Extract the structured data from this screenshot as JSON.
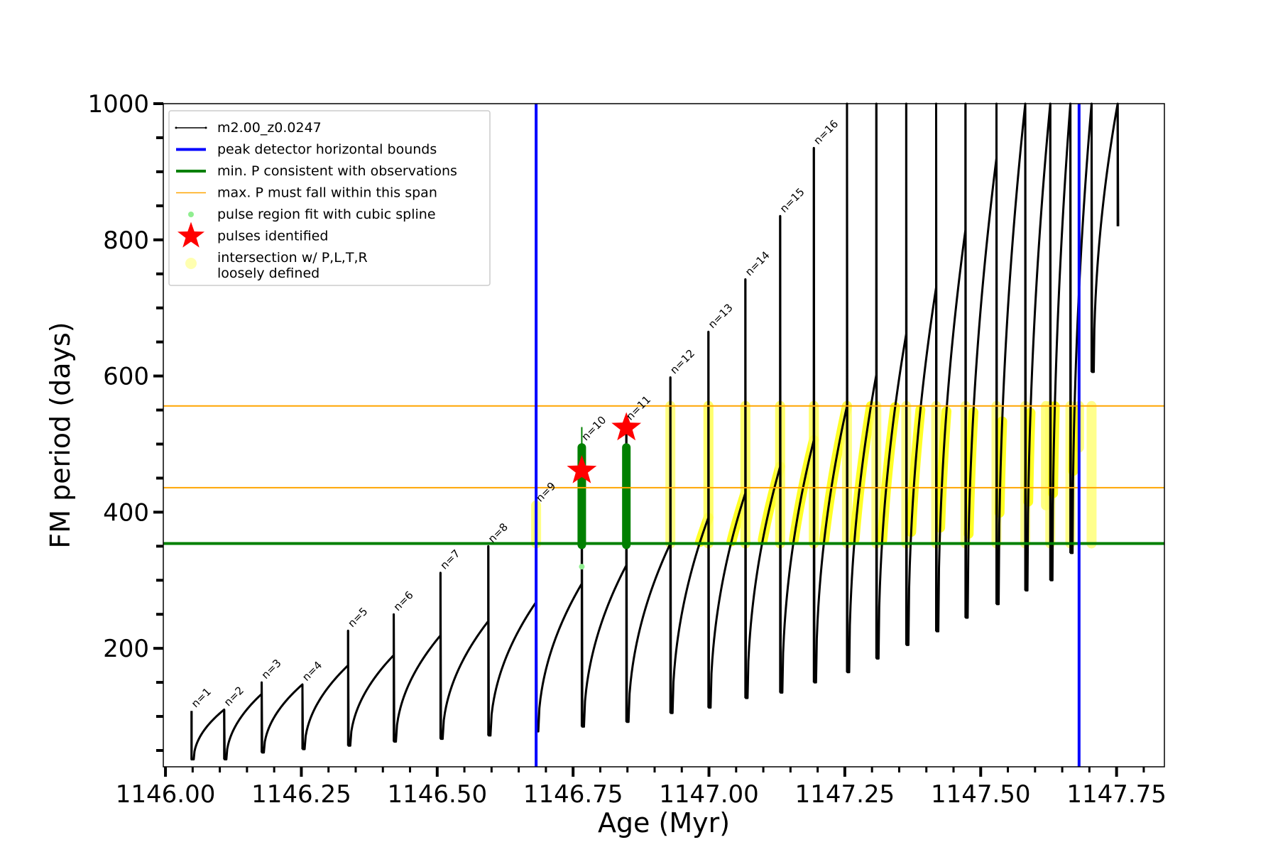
{
  "chart_data": {
    "type": "line",
    "xlabel": "Age (Myr)",
    "ylabel": "FM period (days)",
    "xlim": [
      1145.996,
      1147.838
    ],
    "ylim": [
      26,
      1000
    ],
    "xticks": [
      "1146.00",
      "1146.25",
      "1146.50",
      "1146.75",
      "1147.00",
      "1147.25",
      "1147.50",
      "1147.75"
    ],
    "xtick_values": [
      1146.0,
      1146.25,
      1146.5,
      1146.75,
      1147.0,
      1147.25,
      1147.5,
      1147.75
    ],
    "yticks": [
      "200",
      "400",
      "600",
      "800",
      "1000"
    ],
    "ytick_values": [
      200,
      400,
      600,
      800,
      1000
    ],
    "legend_position": "top-left",
    "legend": [
      {
        "label": "m2.00_z0.0247",
        "kind": "line-dot",
        "color": "#000000"
      },
      {
        "label": "peak detector horizontal bounds",
        "kind": "line",
        "color": "#0000ff"
      },
      {
        "label": "min. P consistent with observations",
        "kind": "line",
        "color": "#008000"
      },
      {
        "label": "max. P must fall within this span",
        "kind": "thin-line",
        "color": "#ffa500"
      },
      {
        "label": "pulse region fit with cubic spline",
        "kind": "dot",
        "color": "#90ee90"
      },
      {
        "label": "pulses identified",
        "kind": "star",
        "color": "#ff0000"
      },
      {
        "label": "intersection w/ P,L,T,R\nloosely defined",
        "kind": "circle",
        "color": "#ffffb0"
      }
    ],
    "vertical_lines": [
      {
        "x": 1146.682,
        "color": "#0000ff"
      },
      {
        "x": 1147.681,
        "color": "#0000ff"
      }
    ],
    "horizontal_lines": [
      {
        "y": 354,
        "color": "#008000"
      },
      {
        "y": 436,
        "color": "#ffa500"
      },
      {
        "y": 556,
        "color": "#ffa500"
      }
    ],
    "pulses": [
      {
        "label": "n=1",
        "x": 1146.048,
        "peak": 108,
        "low": 37,
        "prev_end": 37
      },
      {
        "label": "n=2",
        "x": 1146.108,
        "peak": 110,
        "low": 37,
        "prev_end": 110
      },
      {
        "label": "n=3",
        "x": 1146.177,
        "peak": 150,
        "low": 47,
        "prev_end": 133
      },
      {
        "label": "n=4",
        "x": 1146.252,
        "peak": 147,
        "low": 52,
        "prev_end": 147
      },
      {
        "label": "n=5",
        "x": 1146.336,
        "peak": 226,
        "low": 57,
        "prev_end": 175
      },
      {
        "label": "n=6",
        "x": 1146.42,
        "peak": 250,
        "low": 63,
        "prev_end": 190
      },
      {
        "label": "n=7",
        "x": 1146.506,
        "peak": 311,
        "low": 67,
        "prev_end": 219
      },
      {
        "label": "n=8",
        "x": 1146.594,
        "peak": 350,
        "low": 72,
        "prev_end": 240
      },
      {
        "label": "n=9",
        "x": 1146.682,
        "peak": 410,
        "low": 78,
        "prev_end": 268
      },
      {
        "label": "n=10",
        "x": 1146.766,
        "peak": 500,
        "low": 85,
        "prev_end": 295
      },
      {
        "label": "n=11",
        "x": 1146.848,
        "peak": 530,
        "low": 92,
        "prev_end": 322
      },
      {
        "label": "n=12",
        "x": 1146.929,
        "peak": 598,
        "low": 105,
        "prev_end": 354
      },
      {
        "label": "n=13",
        "x": 1146.999,
        "peak": 665,
        "low": 113,
        "prev_end": 392
      },
      {
        "label": "n=14",
        "x": 1147.067,
        "peak": 742,
        "low": 127,
        "prev_end": 428
      },
      {
        "label": "n=15",
        "x": 1147.131,
        "peak": 835,
        "low": 135,
        "prev_end": 467
      },
      {
        "label": "n=16",
        "x": 1147.193,
        "peak": 935,
        "low": 150,
        "prev_end": 506
      },
      {
        "label": "",
        "x": 1147.254,
        "peak": 1000,
        "low": 165,
        "prev_end": 556
      },
      {
        "label": "",
        "x": 1147.308,
        "peak": 1000,
        "low": 185,
        "prev_end": 602
      },
      {
        "label": "",
        "x": 1147.363,
        "peak": 1000,
        "low": 205,
        "prev_end": 662
      },
      {
        "label": "",
        "x": 1147.418,
        "peak": 1000,
        "low": 225,
        "prev_end": 730
      },
      {
        "label": "",
        "x": 1147.472,
        "peak": 1000,
        "low": 245,
        "prev_end": 815
      },
      {
        "label": "",
        "x": 1147.529,
        "peak": 1000,
        "low": 265,
        "prev_end": 920
      },
      {
        "label": "",
        "x": 1147.582,
        "peak": 1000,
        "low": 285,
        "prev_end": 1000
      },
      {
        "label": "",
        "x": 1147.628,
        "peak": 1000,
        "low": 300,
        "prev_end": 1000
      },
      {
        "label": "",
        "x": 1147.665,
        "peak": 1000,
        "low": 340,
        "prev_end": 1000
      },
      {
        "label": "",
        "x": 1147.704,
        "peak": 1000,
        "low": 606,
        "prev_end": 1000
      },
      {
        "label": "",
        "x": 1147.752,
        "peak": 1000,
        "low": 820,
        "prev_end": 1000
      }
    ],
    "pulses_identified": [
      {
        "x": 1146.766,
        "y": 461
      },
      {
        "x": 1146.848,
        "y": 524
      }
    ],
    "spline_fit_regions": [
      {
        "x": 1146.766,
        "y_from": 352,
        "y_to": 495
      },
      {
        "x": 1146.848,
        "y_from": 352,
        "y_to": 495
      }
    ],
    "loose_intersection_regions": [
      {
        "x_from": 1146.682,
        "x_to": 1146.682,
        "y_from": 354,
        "y_to": 410
      },
      {
        "x_from": 1146.929,
        "x_to": 1146.929,
        "y_from": 354,
        "y_to": 556
      },
      {
        "x_from": 1146.999,
        "x_to": 1146.999,
        "y_from": 354,
        "y_to": 556
      },
      {
        "x_from": 1147.067,
        "x_to": 1147.067,
        "y_from": 354,
        "y_to": 556
      },
      {
        "x_from": 1147.131,
        "x_to": 1147.131,
        "y_from": 354,
        "y_to": 556
      },
      {
        "x_from": 1147.193,
        "x_to": 1147.193,
        "y_from": 354,
        "y_to": 556
      },
      {
        "x_from": 1147.62,
        "x_to": 1147.62,
        "y_from": 410,
        "y_to": 556
      },
      {
        "x_from": 1147.681,
        "x_to": 1147.681,
        "y_from": 495,
        "y_to": 556
      }
    ]
  }
}
